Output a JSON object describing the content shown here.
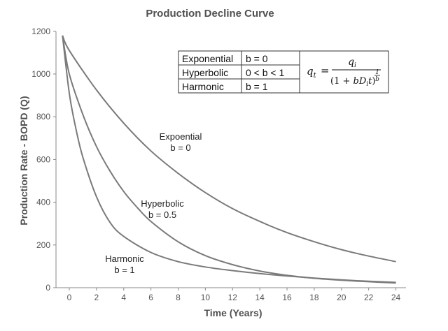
{
  "chart_data": {
    "type": "line",
    "title": "Production Decline Curve",
    "xlabel": "Time (Years)",
    "ylabel": "Production Rate - BOPD (Q)",
    "xlim": [
      -1,
      25
    ],
    "ylim": [
      0,
      1200
    ],
    "xticks": [
      "0",
      "2",
      "4",
      "6",
      "8",
      "10",
      "12",
      "14",
      "16",
      "18",
      "20",
      "22",
      "24"
    ],
    "yticks": [
      "0",
      "200",
      "400",
      "600",
      "800",
      "1000",
      "1200"
    ],
    "grid": false,
    "series": [
      {
        "label_lines": [
          "Expoential",
          "b = 0"
        ],
        "x": [
          -0.5,
          0,
          2,
          4,
          6,
          8,
          10,
          12,
          14,
          16,
          18,
          20,
          22,
          24
        ],
        "y": [
          1180,
          1110,
          925,
          770,
          640,
          535,
          445,
          370,
          310,
          258,
          215,
          178,
          148,
          122
        ]
      },
      {
        "label_lines": [
          "Hyperbolic",
          "b = 0.5"
        ],
        "x": [
          -0.5,
          0,
          1,
          2,
          3,
          4,
          5,
          6,
          8,
          10,
          12,
          14,
          16,
          18,
          20,
          22,
          24
        ],
        "y": [
          1180,
          1000,
          810,
          660,
          545,
          450,
          375,
          310,
          215,
          150,
          108,
          78,
          58,
          44,
          35,
          28,
          22
        ]
      },
      {
        "label_lines": [
          "Harmonic",
          "b = 1"
        ],
        "x": [
          -0.5,
          0,
          0.5,
          1,
          2,
          3,
          4,
          6,
          8,
          10,
          12,
          14,
          16,
          18,
          20,
          22,
          24
        ],
        "y": [
          1180,
          910,
          740,
          610,
          425,
          305,
          240,
          165,
          122,
          97,
          80,
          66,
          55,
          45,
          37,
          30,
          25
        ]
      }
    ],
    "legend_table": {
      "rows": [
        [
          "Exponential",
          "b = 0"
        ],
        [
          "Hyperbolic",
          "0 < b < 1"
        ],
        [
          "Harmonic",
          "b = 1"
        ]
      ],
      "equation": {
        "lhs": "q",
        "lhs_sub": "t",
        "num": "q",
        "num_sub": "i",
        "den_open": "(1 + ",
        "den_b": "b",
        "den_D": "D",
        "den_D_sub": "i",
        "den_t": "t",
        "den_close": ")",
        "exp_num": "1",
        "exp_den": "b"
      }
    }
  }
}
